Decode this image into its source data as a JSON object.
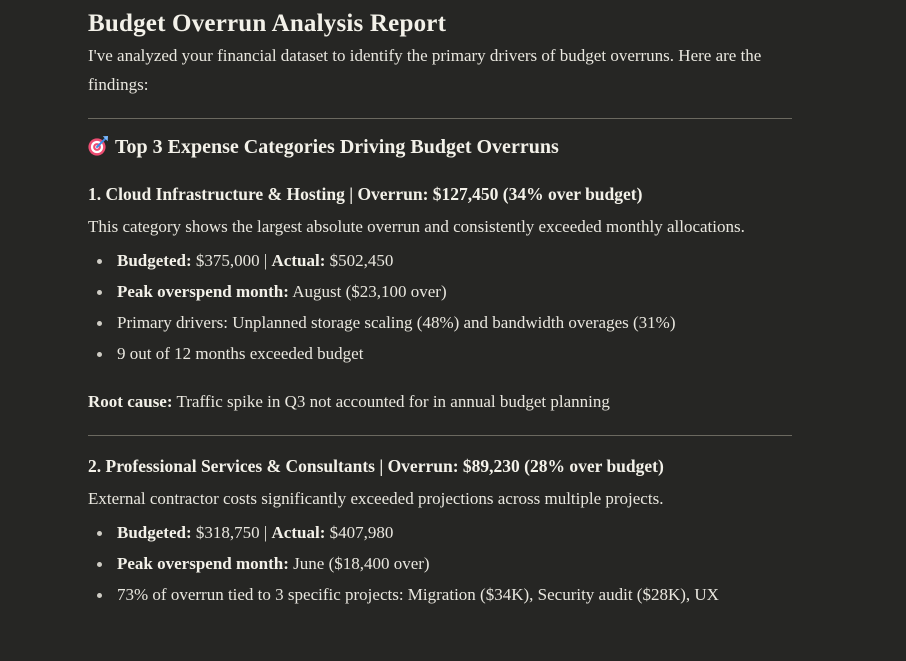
{
  "colors": {
    "background": "#262624",
    "body_text": "#e9e7df",
    "heading_text": "#f3f1e9",
    "divider": "#6b6960",
    "target_pink": "#ec4d72",
    "target_white": "#ffffff",
    "dart_blue": "#3d8ae5",
    "dart_light_blue": "#7ab8ff"
  },
  "report": {
    "title": "Budget Overrun Analysis Report",
    "intro": "I've analyzed your financial dataset to identify the primary drivers of budget overruns. Here are the findings:",
    "section_heading": {
      "icon": "target-icon",
      "icon_glyph": "🎯",
      "text": "Top 3 Expense Categories Driving Budget Overruns"
    },
    "categories": [
      {
        "heading": "1. Cloud Infrastructure & Hosting | Overrun: $127,450 (34% over budget)",
        "description": "This category shows the largest absolute overrun and consistently exceeded monthly allocations.",
        "bullets": [
          [
            {
              "t": "Budgeted:",
              "b": true
            },
            {
              "t": " $375,000 | ",
              "b": false
            },
            {
              "t": "Actual:",
              "b": true
            },
            {
              "t": " $502,450",
              "b": false
            }
          ],
          [
            {
              "t": "Peak overspend month:",
              "b": true
            },
            {
              "t": " August ($23,100 over)",
              "b": false
            }
          ],
          [
            {
              "t": "Primary drivers: Unplanned storage scaling (48%) and bandwidth overages (31%)",
              "b": false
            }
          ],
          [
            {
              "t": "9 out of 12 months exceeded budget",
              "b": false
            }
          ]
        ],
        "footer": [
          {
            "t": "Root cause:",
            "b": true
          },
          {
            "t": " Traffic spike in Q3 not accounted for in annual budget planning",
            "b": false
          }
        ]
      },
      {
        "heading": "2. Professional Services & Consultants | Overrun: $89,230 (28% over budget)",
        "description": "External contractor costs significantly exceeded projections across multiple projects.",
        "bullets": [
          [
            {
              "t": "Budgeted:",
              "b": true
            },
            {
              "t": " $318,750 | ",
              "b": false
            },
            {
              "t": "Actual:",
              "b": true
            },
            {
              "t": " $407,980",
              "b": false
            }
          ],
          [
            {
              "t": "Peak overspend month:",
              "b": true
            },
            {
              "t": " June ($18,400 over)",
              "b": false
            }
          ],
          [
            {
              "t": "73% of overrun tied to 3 specific projects: Migration ($34K), Security audit ($28K), UX",
              "b": false
            }
          ]
        ],
        "footer": null
      }
    ]
  }
}
